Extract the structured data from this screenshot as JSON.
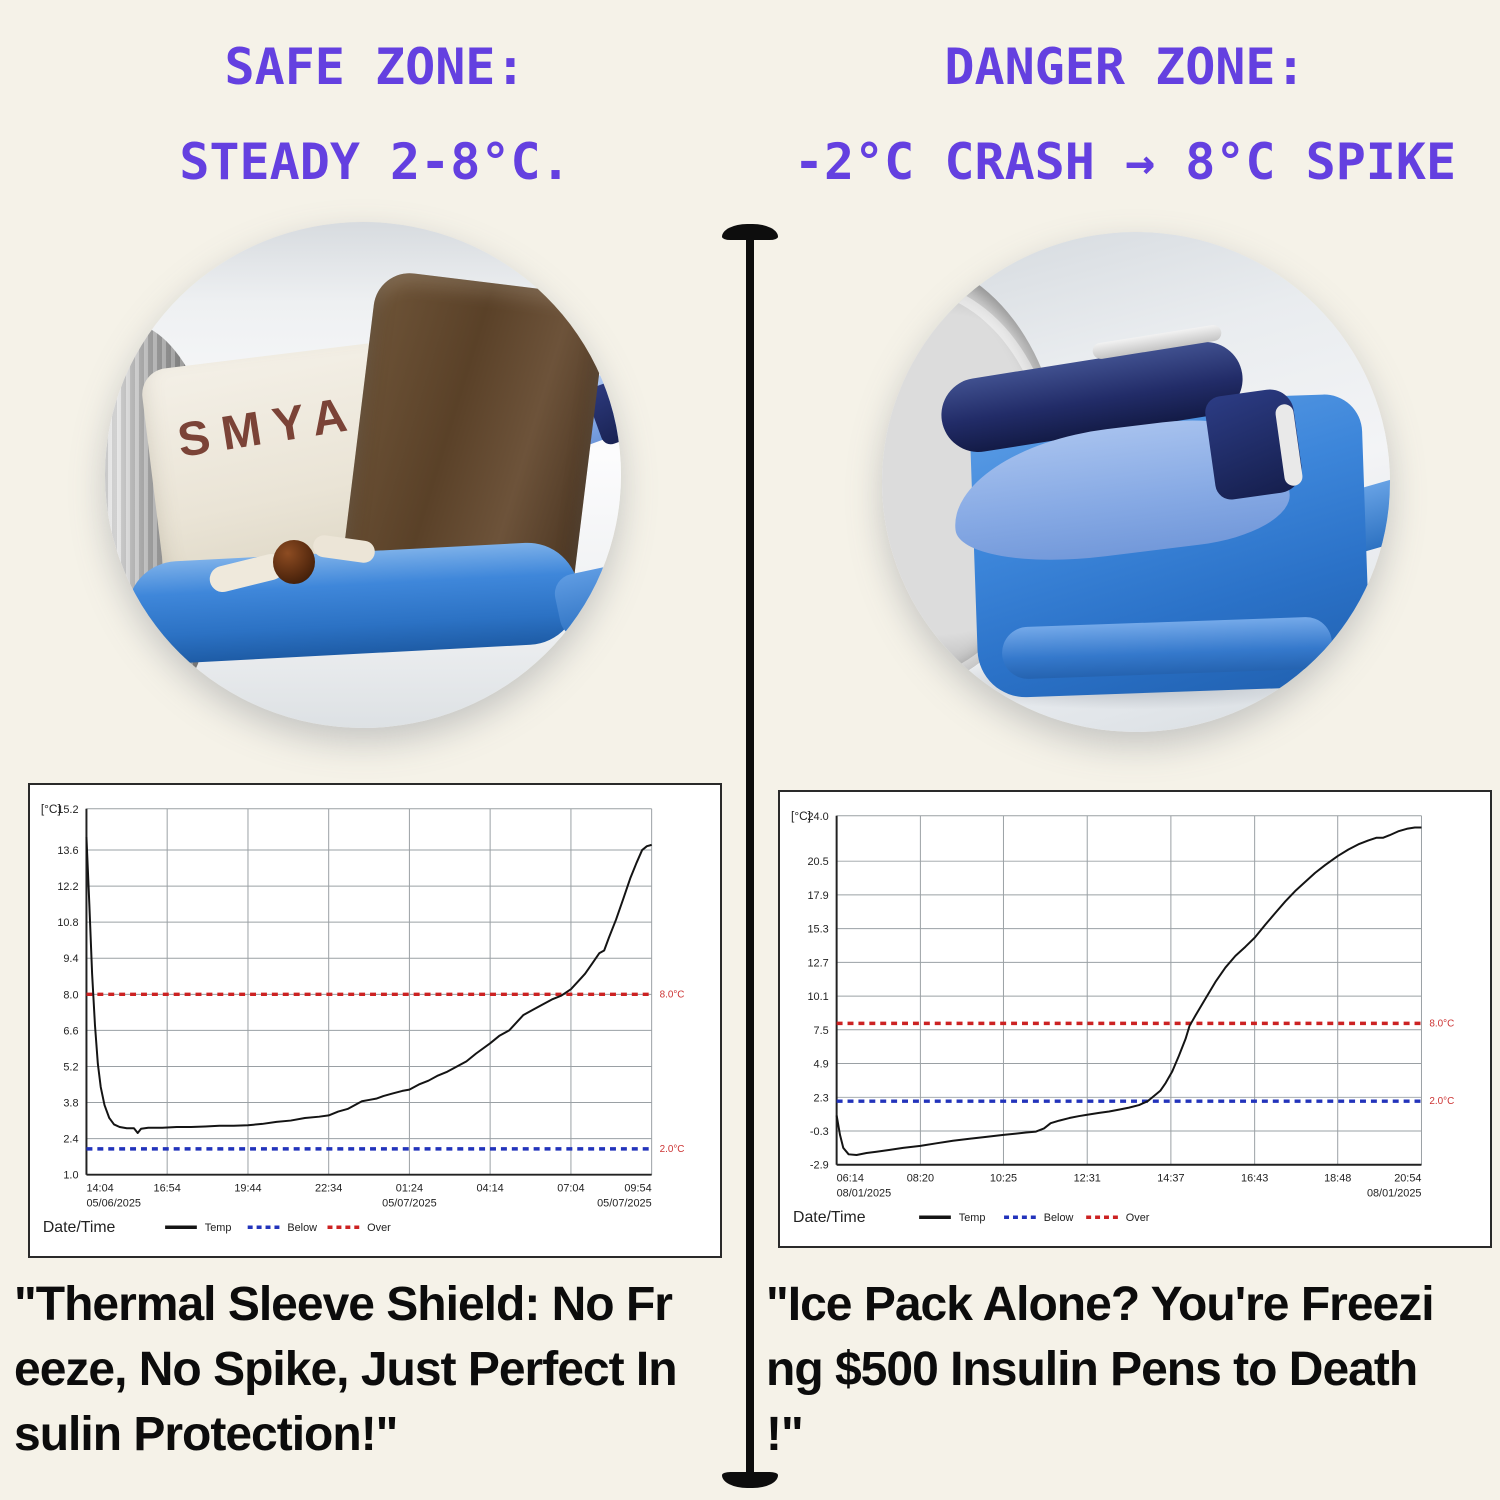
{
  "theme": {
    "background": "#f5f2e8",
    "heading_color": "#6440e0",
    "divider_color": "#0d0d0d",
    "quote_color": "#0c0c0c",
    "over_line_color": "#cc2222",
    "below_line_color": "#2233bb",
    "temp_line_color": "#141414"
  },
  "left": {
    "heading_line1": "SAFE ZONE:",
    "heading_line2": "STEADY 2-8°C.",
    "photo_brand": "SMYA",
    "quote": "\"Thermal Sleeve Shield: No Fr\neeze, No Spike, Just Perfect In\nsulin Protection!\""
  },
  "right": {
    "heading_line1": "DANGER ZONE:",
    "heading_line2": "-2°C CRASH → 8°C SPIKE",
    "quote": "\"Ice Pack Alone? You're Freezi\nng $500 Insulin Pens to Death\n!\""
  },
  "chart_data": [
    {
      "type": "line",
      "name": "safe-zone-temperature-log",
      "unit_label": "[°C]",
      "xlabel": "Date/Time",
      "ylim": [
        1.0,
        15.2
      ],
      "y_ticks": [
        15.2,
        13.6,
        12.2,
        10.8,
        9.4,
        8.0,
        6.6,
        5.2,
        3.8,
        2.4,
        1.0
      ],
      "x_total_min": 1190,
      "x_ticks": [
        {
          "label": "14:04",
          "sub": "05/06/2025",
          "m": 0
        },
        {
          "label": "16:54",
          "m": 170
        },
        {
          "label": "19:44",
          "m": 340
        },
        {
          "label": "22:34",
          "m": 510
        },
        {
          "label": "01:24",
          "sub": "05/07/2025",
          "m": 680
        },
        {
          "label": "04:14",
          "m": 850
        },
        {
          "label": "07:04",
          "m": 1020
        },
        {
          "label": "09:54",
          "sub": "05/07/2025",
          "m": 1190
        }
      ],
      "thresholds": [
        {
          "label": "8.0°C",
          "value": 8.0,
          "role": "over",
          "color": "#cc2222"
        },
        {
          "label": "2.0°C",
          "value": 2.0,
          "role": "below",
          "color": "#2233bb"
        }
      ],
      "legend": [
        {
          "label": "Temp",
          "color": "#141414",
          "dash": false
        },
        {
          "label": "Below",
          "color": "#2233bb",
          "dash": true
        },
        {
          "label": "Over",
          "color": "#cc2222",
          "dash": true
        }
      ],
      "series": [
        {
          "name": "Temp",
          "points": [
            [
              0,
              14.1
            ],
            [
              6,
              11.5
            ],
            [
              12,
              8.8
            ],
            [
              18,
              6.8
            ],
            [
              24,
              5.3
            ],
            [
              30,
              4.4
            ],
            [
              38,
              3.7
            ],
            [
              48,
              3.2
            ],
            [
              58,
              2.95
            ],
            [
              70,
              2.85
            ],
            [
              85,
              2.8
            ],
            [
              100,
              2.8
            ],
            [
              108,
              2.62
            ],
            [
              115,
              2.78
            ],
            [
              130,
              2.82
            ],
            [
              160,
              2.82
            ],
            [
              190,
              2.85
            ],
            [
              220,
              2.85
            ],
            [
              250,
              2.87
            ],
            [
              280,
              2.9
            ],
            [
              310,
              2.9
            ],
            [
              340,
              2.92
            ],
            [
              370,
              2.97
            ],
            [
              400,
              3.05
            ],
            [
              430,
              3.1
            ],
            [
              460,
              3.2
            ],
            [
              490,
              3.25
            ],
            [
              510,
              3.3
            ],
            [
              530,
              3.45
            ],
            [
              550,
              3.55
            ],
            [
              565,
              3.7
            ],
            [
              580,
              3.85
            ],
            [
              595,
              3.9
            ],
            [
              610,
              3.95
            ],
            [
              625,
              4.05
            ],
            [
              645,
              4.15
            ],
            [
              665,
              4.25
            ],
            [
              680,
              4.3
            ],
            [
              700,
              4.5
            ],
            [
              720,
              4.65
            ],
            [
              740,
              4.85
            ],
            [
              760,
              5.0
            ],
            [
              780,
              5.2
            ],
            [
              800,
              5.4
            ],
            [
              820,
              5.7
            ],
            [
              850,
              6.1
            ],
            [
              870,
              6.4
            ],
            [
              890,
              6.6
            ],
            [
              905,
              6.9
            ],
            [
              920,
              7.2
            ],
            [
              940,
              7.4
            ],
            [
              960,
              7.6
            ],
            [
              980,
              7.8
            ],
            [
              1000,
              7.95
            ],
            [
              1020,
              8.2
            ],
            [
              1035,
              8.5
            ],
            [
              1050,
              8.8
            ],
            [
              1065,
              9.2
            ],
            [
              1080,
              9.6
            ],
            [
              1090,
              9.7
            ],
            [
              1100,
              10.2
            ],
            [
              1115,
              10.9
            ],
            [
              1130,
              11.7
            ],
            [
              1145,
              12.5
            ],
            [
              1158,
              13.1
            ],
            [
              1170,
              13.6
            ],
            [
              1180,
              13.75
            ],
            [
              1190,
              13.8
            ]
          ]
        }
      ]
    },
    {
      "type": "line",
      "name": "danger-zone-temperature-log",
      "unit_label": "[°C]",
      "xlabel": "Date/Time",
      "ylim": [
        -2.9,
        24.0
      ],
      "y_ticks": [
        24.0,
        20.5,
        17.9,
        15.3,
        12.7,
        10.1,
        7.5,
        4.9,
        2.3,
        -0.3,
        -2.9
      ],
      "x_total_min": 880,
      "x_ticks": [
        {
          "label": "06:14",
          "sub": "08/01/2025",
          "m": 0
        },
        {
          "label": "08:20",
          "m": 126
        },
        {
          "label": "10:25",
          "m": 251
        },
        {
          "label": "12:31",
          "m": 377
        },
        {
          "label": "14:37",
          "m": 503
        },
        {
          "label": "16:43",
          "m": 629
        },
        {
          "label": "18:48",
          "m": 754
        },
        {
          "label": "20:54",
          "sub": "08/01/2025",
          "m": 880
        }
      ],
      "thresholds": [
        {
          "label": "8.0°C",
          "value": 8.0,
          "role": "over",
          "color": "#cc2222"
        },
        {
          "label": "2.0°C",
          "value": 2.0,
          "role": "below",
          "color": "#2233bb"
        }
      ],
      "legend": [
        {
          "label": "Temp",
          "color": "#141414",
          "dash": false
        },
        {
          "label": "Below",
          "color": "#2233bb",
          "dash": true
        },
        {
          "label": "Over",
          "color": "#cc2222",
          "dash": true
        }
      ],
      "series": [
        {
          "name": "Temp",
          "points": [
            [
              0,
              0.9
            ],
            [
              5,
              -0.6
            ],
            [
              10,
              -1.6
            ],
            [
              18,
              -2.1
            ],
            [
              30,
              -2.15
            ],
            [
              45,
              -2.0
            ],
            [
              60,
              -1.9
            ],
            [
              80,
              -1.75
            ],
            [
              100,
              -1.6
            ],
            [
              126,
              -1.45
            ],
            [
              150,
              -1.25
            ],
            [
              175,
              -1.05
            ],
            [
              200,
              -0.9
            ],
            [
              225,
              -0.75
            ],
            [
              251,
              -0.6
            ],
            [
              270,
              -0.5
            ],
            [
              285,
              -0.42
            ],
            [
              300,
              -0.35
            ],
            [
              312,
              -0.1
            ],
            [
              322,
              0.3
            ],
            [
              335,
              0.5
            ],
            [
              350,
              0.7
            ],
            [
              365,
              0.85
            ],
            [
              377,
              0.95
            ],
            [
              395,
              1.1
            ],
            [
              410,
              1.2
            ],
            [
              425,
              1.35
            ],
            [
              440,
              1.5
            ],
            [
              455,
              1.7
            ],
            [
              468,
              2.0
            ],
            [
              480,
              2.5
            ],
            [
              487,
              2.8
            ],
            [
              495,
              3.4
            ],
            [
              505,
              4.3
            ],
            [
              515,
              5.5
            ],
            [
              525,
              6.8
            ],
            [
              531,
              7.8
            ],
            [
              540,
              8.6
            ],
            [
              555,
              9.9
            ],
            [
              570,
              11.2
            ],
            [
              585,
              12.3
            ],
            [
              600,
              13.2
            ],
            [
              615,
              13.9
            ],
            [
              629,
              14.6
            ],
            [
              645,
              15.6
            ],
            [
              660,
              16.5
            ],
            [
              675,
              17.4
            ],
            [
              690,
              18.2
            ],
            [
              705,
              18.9
            ],
            [
              720,
              19.6
            ],
            [
              735,
              20.2
            ],
            [
              754,
              20.9
            ],
            [
              770,
              21.4
            ],
            [
              785,
              21.8
            ],
            [
              800,
              22.1
            ],
            [
              812,
              22.3
            ],
            [
              822,
              22.3
            ],
            [
              832,
              22.5
            ],
            [
              845,
              22.8
            ],
            [
              858,
              23.0
            ],
            [
              870,
              23.1
            ],
            [
              880,
              23.1
            ]
          ]
        }
      ]
    }
  ]
}
